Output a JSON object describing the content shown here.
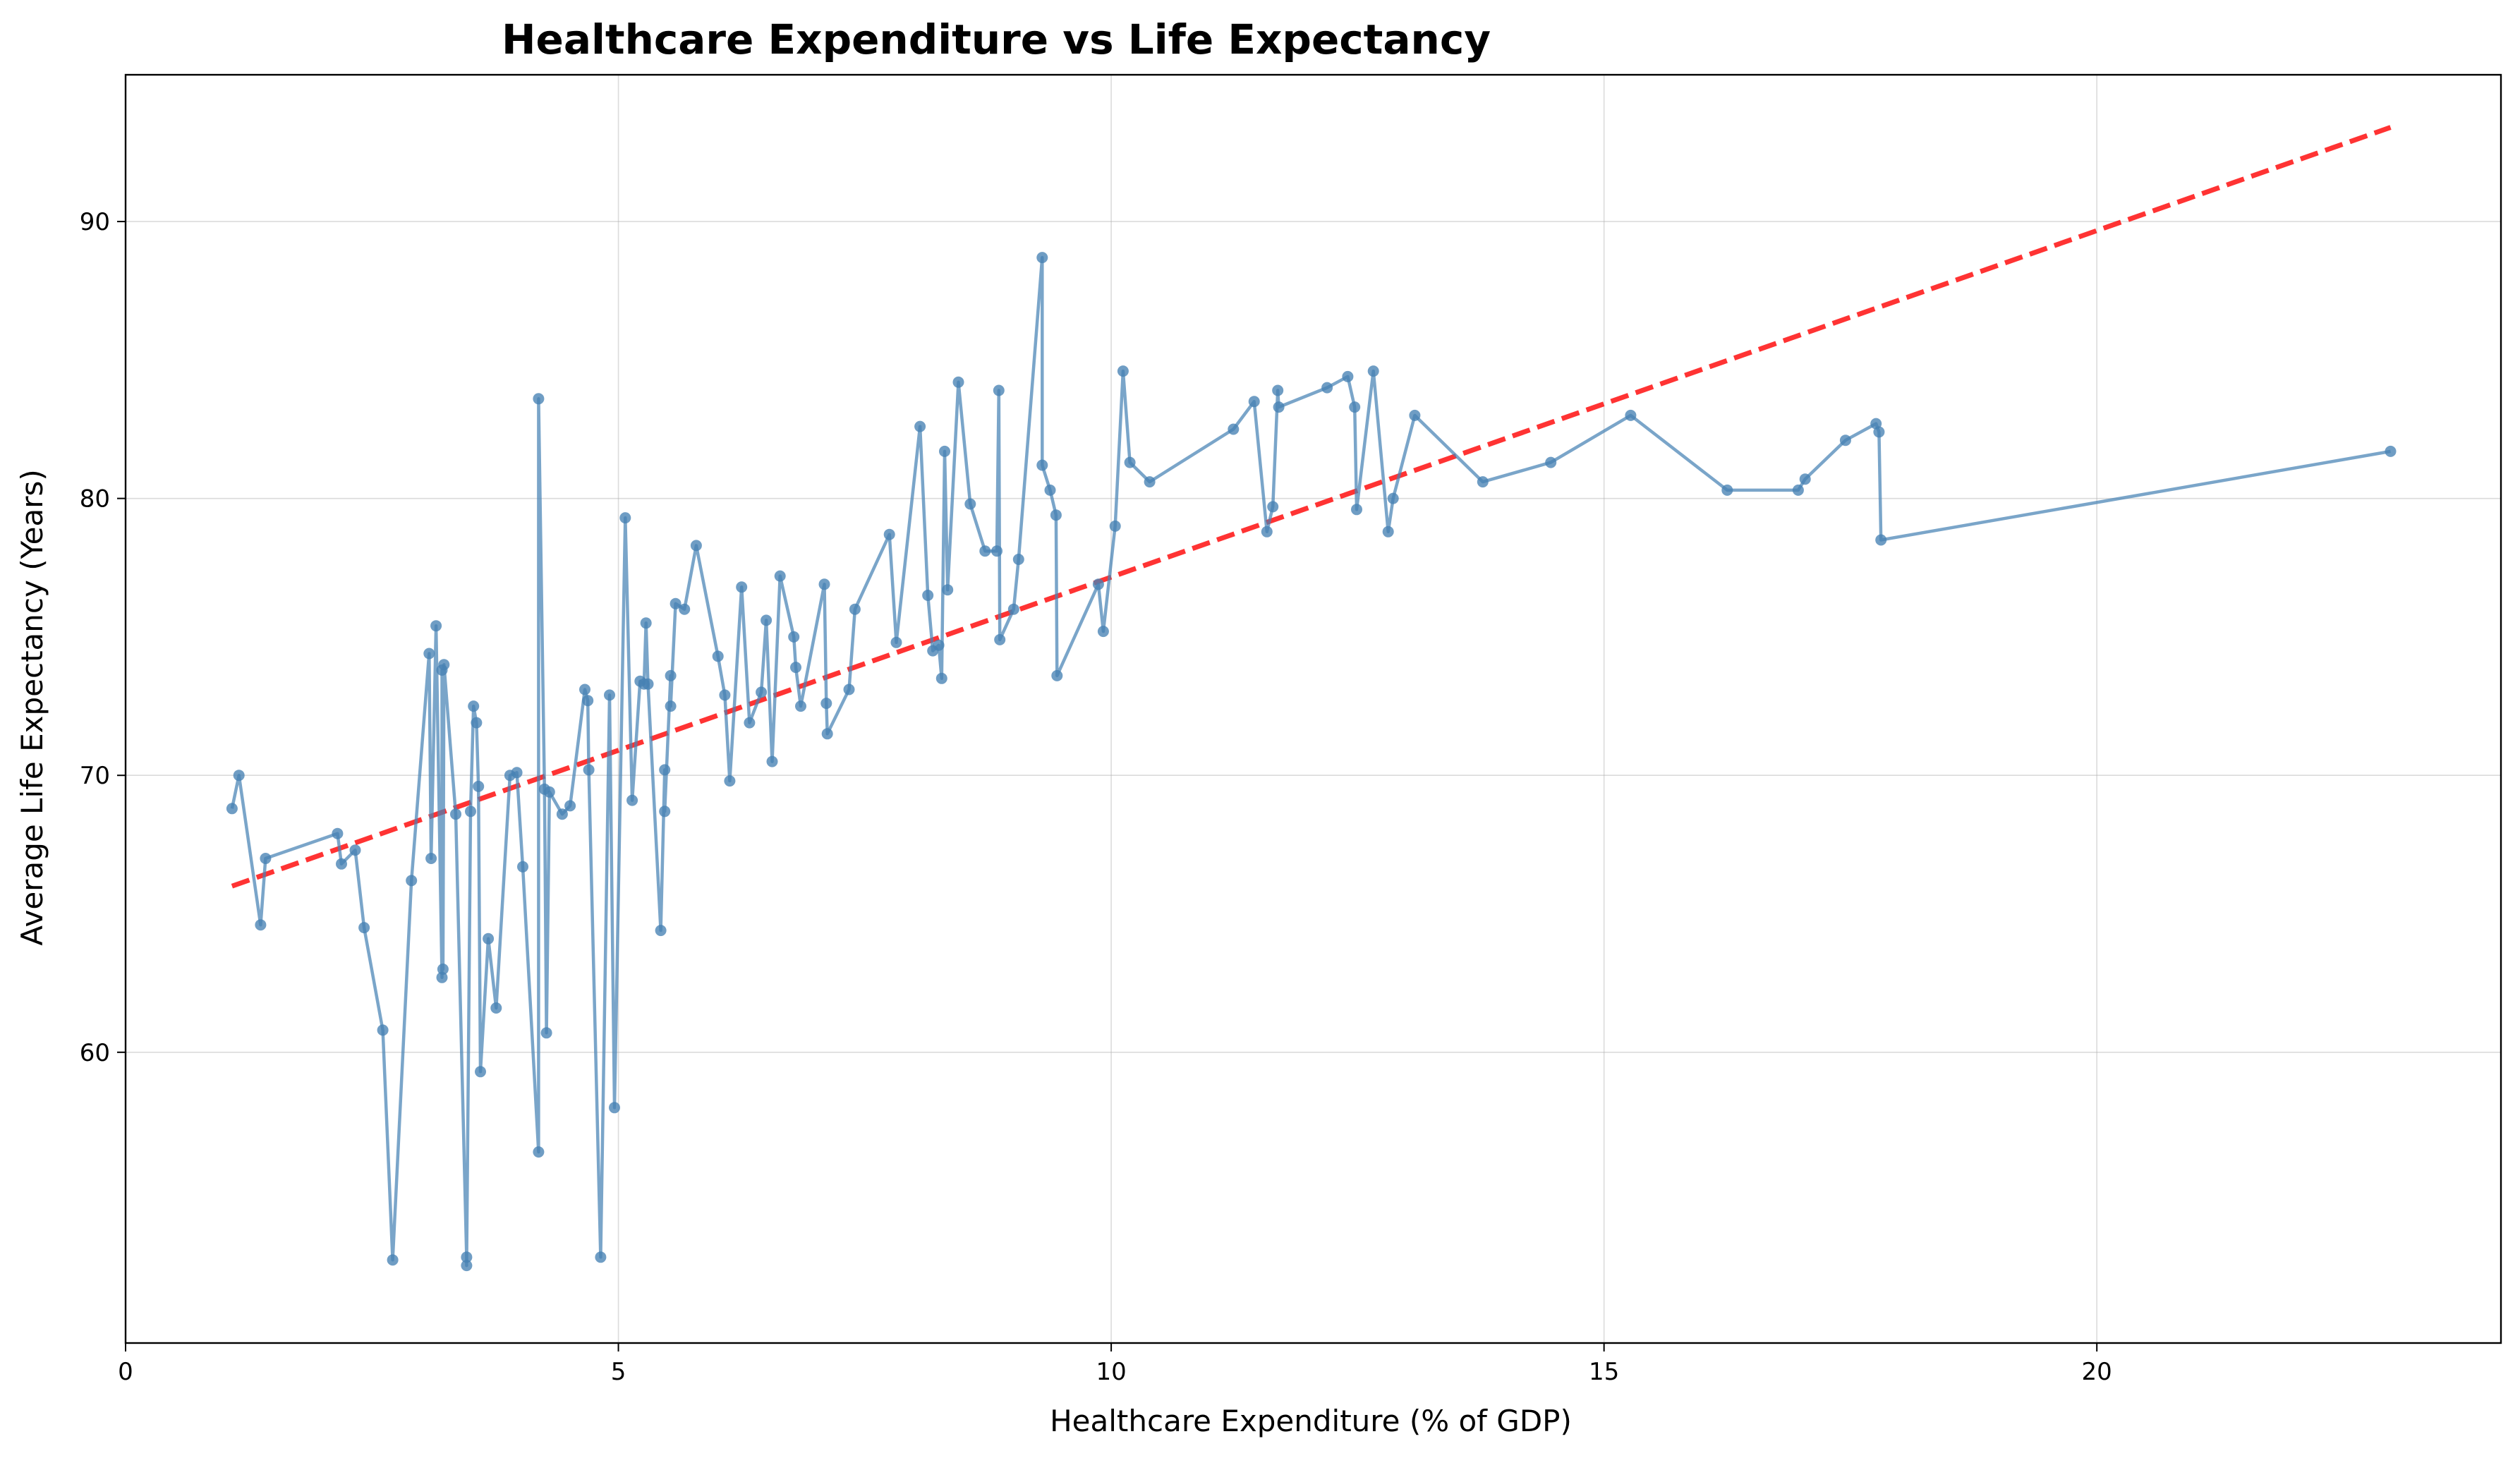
{
  "chart_data": {
    "type": "line",
    "title": "Healthcare Expenditure vs Life Expectancy",
    "xlabel": "Healthcare Expenditure (% of GDP)",
    "ylabel": "Average Life Expectancy (Years)",
    "xlim": [
      0,
      24.1
    ],
    "ylim": [
      49.5,
      95.3
    ],
    "xticks": [
      0,
      5,
      10,
      15,
      20
    ],
    "yticks": [
      60,
      70,
      80,
      90
    ],
    "grid": true,
    "colors": {
      "series": "#4682b4",
      "trend": "#ff0000"
    },
    "series": [
      {
        "style": "line-with-markers",
        "points": [
          [
            1.08,
            68.8
          ],
          [
            1.15,
            70.0
          ],
          [
            1.37,
            64.6
          ],
          [
            1.42,
            67.0
          ],
          [
            2.15,
            67.9
          ],
          [
            2.19,
            66.8
          ],
          [
            2.33,
            67.3
          ],
          [
            2.42,
            64.5
          ],
          [
            2.61,
            60.8
          ],
          [
            2.71,
            52.5
          ],
          [
            2.9,
            66.2
          ],
          [
            3.08,
            74.4
          ],
          [
            3.1,
            67.0
          ],
          [
            3.15,
            75.4
          ],
          [
            3.21,
            62.7
          ],
          [
            3.21,
            73.8
          ],
          [
            3.22,
            63.0
          ],
          [
            3.23,
            74.0
          ],
          [
            3.35,
            68.6
          ],
          [
            3.46,
            52.6
          ],
          [
            3.46,
            52.3
          ],
          [
            3.5,
            68.7
          ],
          [
            3.53,
            72.5
          ],
          [
            3.56,
            71.9
          ],
          [
            3.58,
            69.6
          ],
          [
            3.6,
            59.3
          ],
          [
            3.68,
            64.1
          ],
          [
            3.76,
            61.6
          ],
          [
            3.9,
            70.0
          ],
          [
            3.97,
            70.1
          ],
          [
            4.03,
            66.7
          ],
          [
            4.19,
            56.4
          ],
          [
            4.19,
            83.6
          ],
          [
            4.25,
            69.5
          ],
          [
            4.27,
            60.7
          ],
          [
            4.3,
            69.4
          ],
          [
            4.43,
            68.6
          ],
          [
            4.51,
            68.9
          ],
          [
            4.66,
            73.1
          ],
          [
            4.69,
            72.7
          ],
          [
            4.7,
            70.2
          ],
          [
            4.82,
            52.6
          ],
          [
            4.91,
            72.9
          ],
          [
            4.96,
            58.0
          ],
          [
            5.07,
            79.3
          ],
          [
            5.14,
            69.1
          ],
          [
            5.22,
            73.4
          ],
          [
            5.26,
            73.3
          ],
          [
            5.28,
            75.5
          ],
          [
            5.3,
            73.3
          ],
          [
            5.43,
            64.4
          ],
          [
            5.47,
            70.2
          ],
          [
            5.47,
            68.7
          ],
          [
            5.53,
            73.6
          ],
          [
            5.53,
            72.5
          ],
          [
            5.58,
            76.2
          ],
          [
            5.67,
            76.0
          ],
          [
            5.79,
            78.3
          ],
          [
            6.01,
            74.3
          ],
          [
            6.08,
            72.9
          ],
          [
            6.13,
            69.8
          ],
          [
            6.25,
            76.8
          ],
          [
            6.33,
            71.9
          ],
          [
            6.45,
            73.0
          ],
          [
            6.5,
            75.6
          ],
          [
            6.56,
            70.5
          ],
          [
            6.64,
            77.2
          ],
          [
            6.78,
            75.0
          ],
          [
            6.8,
            73.9
          ],
          [
            6.85,
            72.5
          ],
          [
            7.09,
            76.9
          ],
          [
            7.11,
            72.6
          ],
          [
            7.12,
            71.5
          ],
          [
            7.34,
            73.1
          ],
          [
            7.4,
            76.0
          ],
          [
            7.75,
            78.7
          ],
          [
            7.82,
            74.8
          ],
          [
            8.06,
            82.6
          ],
          [
            8.14,
            76.5
          ],
          [
            8.19,
            74.5
          ],
          [
            8.25,
            74.7
          ],
          [
            8.28,
            73.5
          ],
          [
            8.31,
            81.7
          ],
          [
            8.34,
            76.7
          ],
          [
            8.45,
            84.2
          ],
          [
            8.57,
            79.8
          ],
          [
            8.72,
            78.1
          ],
          [
            8.84,
            78.1
          ],
          [
            8.86,
            83.9
          ],
          [
            8.87,
            74.9
          ],
          [
            9.01,
            76.0
          ],
          [
            9.06,
            77.8
          ],
          [
            9.3,
            88.7
          ],
          [
            9.3,
            81.2
          ],
          [
            9.38,
            80.3
          ],
          [
            9.44,
            79.4
          ],
          [
            9.45,
            73.6
          ],
          [
            9.87,
            76.9
          ],
          [
            9.92,
            75.2
          ],
          [
            10.04,
            79.0
          ],
          [
            10.12,
            84.6
          ],
          [
            10.19,
            81.3
          ],
          [
            10.39,
            80.6
          ],
          [
            11.24,
            82.5
          ],
          [
            11.45,
            83.5
          ],
          [
            11.58,
            78.8
          ],
          [
            11.64,
            79.7
          ],
          [
            11.69,
            83.9
          ],
          [
            11.7,
            83.3
          ],
          [
            12.19,
            84.0
          ],
          [
            12.4,
            84.4
          ],
          [
            12.47,
            83.3
          ],
          [
            12.49,
            79.6
          ],
          [
            12.66,
            84.6
          ],
          [
            12.81,
            78.8
          ],
          [
            12.86,
            80.0
          ],
          [
            13.08,
            83.0
          ],
          [
            13.77,
            80.6
          ],
          [
            14.46,
            81.3
          ],
          [
            15.27,
            83.0
          ],
          [
            16.25,
            80.3
          ],
          [
            16.97,
            80.3
          ],
          [
            17.04,
            80.7
          ],
          [
            17.45,
            82.1
          ],
          [
            17.76,
            82.7
          ],
          [
            17.79,
            82.4
          ],
          [
            17.81,
            78.5
          ],
          [
            22.98,
            81.7
          ]
        ]
      },
      {
        "style": "dashed-trendline",
        "points": [
          [
            1.08,
            66.0
          ],
          [
            22.98,
            93.4
          ]
        ]
      }
    ]
  }
}
